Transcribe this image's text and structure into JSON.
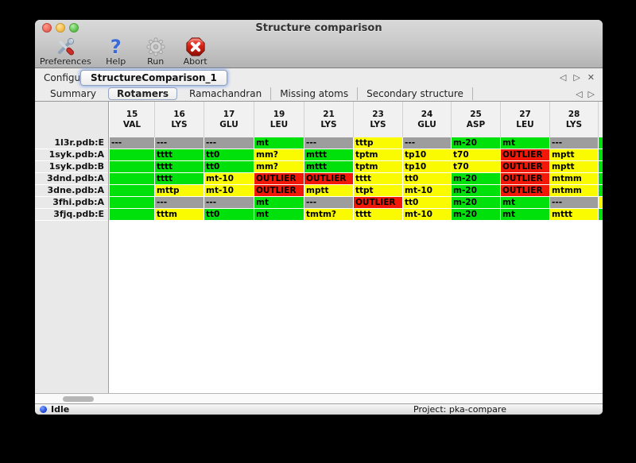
{
  "window": {
    "title": "Structure comparison",
    "traffic_lights": {
      "close": "#ec6a5e",
      "minimize": "#f5bf4f",
      "zoom": "#61c554"
    }
  },
  "toolbar": [
    {
      "label": "Preferences",
      "icon": "tools-icon"
    },
    {
      "label": "Help",
      "icon": "question-icon"
    },
    {
      "label": "Run",
      "icon": "gear-icon"
    },
    {
      "label": "Abort",
      "icon": "stop-icon"
    }
  ],
  "help_glyph": "?",
  "configure": {
    "label": "Configure",
    "task_tab": "StructureComparison_1",
    "nav": {
      "prev": "◁",
      "next": "▷",
      "close": "✕"
    }
  },
  "report_tabs": {
    "items": [
      "Summary",
      "Rotamers",
      "Ramachandran",
      "Missing atoms",
      "Secondary structure"
    ],
    "selected": "Rotamers",
    "nav": {
      "prev": "◁",
      "next": "▷"
    }
  },
  "rotamer_table": {
    "columns": [
      [
        "15",
        "VAL"
      ],
      [
        "16",
        "LYS"
      ],
      [
        "17",
        "GLU"
      ],
      [
        "19",
        "LEU"
      ],
      [
        "21",
        "LYS"
      ],
      [
        "23",
        "LYS"
      ],
      [
        "24",
        "GLU"
      ],
      [
        "25",
        "ASP"
      ],
      [
        "27",
        "LEU"
      ],
      [
        "28",
        "LYS"
      ]
    ],
    "rows": [
      {
        "label": "1l3r.pdb:E",
        "overflow": "green",
        "cells": [
          [
            "---",
            "gray"
          ],
          [
            "---",
            "gray"
          ],
          [
            "---",
            "gray"
          ],
          [
            "mt",
            "green"
          ],
          [
            "---",
            "gray"
          ],
          [
            "tttp",
            "yellow"
          ],
          [
            "---",
            "gray"
          ],
          [
            "m-20",
            "green"
          ],
          [
            "mt",
            "green"
          ],
          [
            "---",
            "gray"
          ]
        ]
      },
      {
        "label": "1syk.pdb:A",
        "overflow": "green",
        "cells": [
          [
            "",
            "green"
          ],
          [
            "tttt",
            "green"
          ],
          [
            "tt0",
            "green"
          ],
          [
            "mm?",
            "yellow"
          ],
          [
            "mttt",
            "green"
          ],
          [
            "tptm",
            "yellow"
          ],
          [
            "tp10",
            "yellow"
          ],
          [
            "t70",
            "yellow"
          ],
          [
            "OUTLIER",
            "red"
          ],
          [
            "mptt",
            "yellow"
          ]
        ]
      },
      {
        "label": "1syk.pdb:B",
        "overflow": "green",
        "cells": [
          [
            "",
            "green"
          ],
          [
            "tttt",
            "green"
          ],
          [
            "tt0",
            "green"
          ],
          [
            "mm?",
            "yellow"
          ],
          [
            "mttt",
            "green"
          ],
          [
            "tptm",
            "yellow"
          ],
          [
            "tp10",
            "yellow"
          ],
          [
            "t70",
            "yellow"
          ],
          [
            "OUTLIER",
            "red"
          ],
          [
            "mptt",
            "yellow"
          ]
        ]
      },
      {
        "label": "3dnd.pdb:A",
        "overflow": "green",
        "cells": [
          [
            "",
            "green"
          ],
          [
            "tttt",
            "green"
          ],
          [
            "mt-10",
            "yellow"
          ],
          [
            "OUTLIER",
            "red"
          ],
          [
            "OUTLIER",
            "red"
          ],
          [
            "tttt",
            "yellow"
          ],
          [
            "tt0",
            "yellow"
          ],
          [
            "m-20",
            "green"
          ],
          [
            "OUTLIER",
            "red"
          ],
          [
            "mtmm",
            "yellow"
          ]
        ]
      },
      {
        "label": "3dne.pdb:A",
        "overflow": "green",
        "cells": [
          [
            "",
            "green"
          ],
          [
            "mttp",
            "yellow"
          ],
          [
            "mt-10",
            "yellow"
          ],
          [
            "OUTLIER",
            "red"
          ],
          [
            "mptt",
            "yellow"
          ],
          [
            "ttpt",
            "yellow"
          ],
          [
            "mt-10",
            "yellow"
          ],
          [
            "m-20",
            "green"
          ],
          [
            "OUTLIER",
            "red"
          ],
          [
            "mtmm",
            "yellow"
          ]
        ]
      },
      {
        "label": "3fhi.pdb:A",
        "overflow": "yellow",
        "cells": [
          [
            "",
            "green"
          ],
          [
            "---",
            "gray"
          ],
          [
            "---",
            "gray"
          ],
          [
            "mt",
            "green"
          ],
          [
            "---",
            "gray"
          ],
          [
            "OUTLIER",
            "red"
          ],
          [
            "tt0",
            "yellow"
          ],
          [
            "m-20",
            "green"
          ],
          [
            "mt",
            "green"
          ],
          [
            "---",
            "gray"
          ]
        ]
      },
      {
        "label": "3fjq.pdb:E",
        "overflow": "green",
        "cells": [
          [
            "",
            "green"
          ],
          [
            "tttm",
            "yellow"
          ],
          [
            "tt0",
            "green"
          ],
          [
            "mt",
            "green"
          ],
          [
            "tmtm?",
            "yellow"
          ],
          [
            "tttt",
            "yellow"
          ],
          [
            "mt-10",
            "yellow"
          ],
          [
            "m-20",
            "green"
          ],
          [
            "mt",
            "green"
          ],
          [
            "mttt",
            "yellow"
          ]
        ]
      }
    ]
  },
  "cell_colors": {
    "green": "#00e10b",
    "yellow": "#fafa00",
    "red": "#f21807",
    "gray": "#9d9d9d"
  },
  "statusbar": {
    "status": "Idle",
    "project": "Project: pka-compare"
  }
}
